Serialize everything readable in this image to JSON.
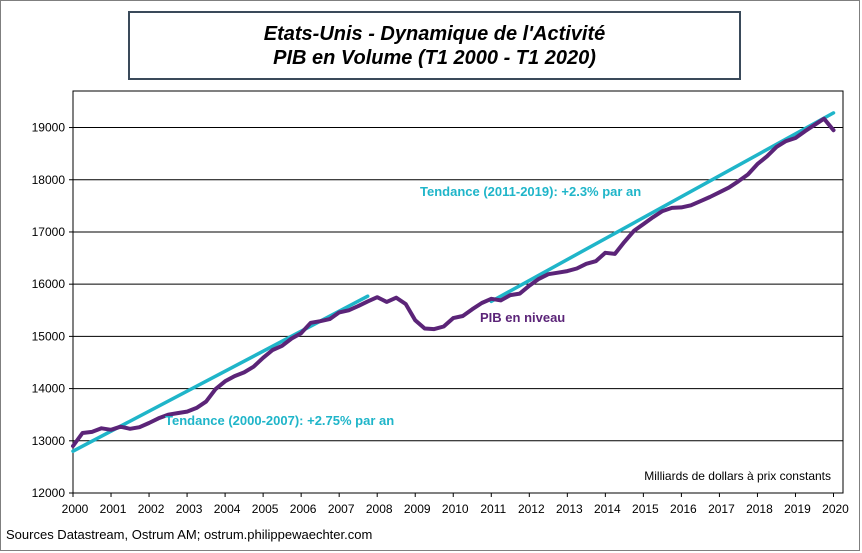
{
  "chart_data": {
    "type": "line",
    "title": "Etats-Unis - Dynamique de l'Activité",
    "subtitle": "PIB en Volume (T1 2000 - T1 2020)",
    "xlabel": "",
    "ylabel": "",
    "xlim": [
      2000,
      2020.25
    ],
    "ylim": [
      12000,
      19700
    ],
    "x_ticks": [
      "2000",
      "2001",
      "2002",
      "2003",
      "2004",
      "2005",
      "2006",
      "2007",
      "2008",
      "2009",
      "2010",
      "2011",
      "2012",
      "2013",
      "2014",
      "2015",
      "2016",
      "2017",
      "2018",
      "2019",
      "2020"
    ],
    "y_ticks": [
      "12000",
      "13000",
      "14000",
      "15000",
      "16000",
      "17000",
      "18000",
      "19000"
    ],
    "grid": "horizontal",
    "unit_note": "Milliards de dollars à prix constants",
    "series": [
      {
        "name": "PIB en niveau",
        "color": "#5b2478",
        "points": [
          [
            2000.0,
            12900
          ],
          [
            2000.25,
            13150
          ],
          [
            2000.5,
            13170
          ],
          [
            2000.75,
            13240
          ],
          [
            2001.0,
            13210
          ],
          [
            2001.25,
            13270
          ],
          [
            2001.5,
            13230
          ],
          [
            2001.75,
            13260
          ],
          [
            2002.0,
            13340
          ],
          [
            2002.25,
            13430
          ],
          [
            2002.5,
            13500
          ],
          [
            2002.75,
            13530
          ],
          [
            2003.0,
            13560
          ],
          [
            2003.25,
            13630
          ],
          [
            2003.5,
            13750
          ],
          [
            2003.75,
            13990
          ],
          [
            2004.0,
            14140
          ],
          [
            2004.25,
            14240
          ],
          [
            2004.5,
            14310
          ],
          [
            2004.75,
            14420
          ],
          [
            2005.0,
            14590
          ],
          [
            2005.25,
            14740
          ],
          [
            2005.5,
            14820
          ],
          [
            2005.75,
            14960
          ],
          [
            2006.0,
            15060
          ],
          [
            2006.25,
            15260
          ],
          [
            2006.5,
            15290
          ],
          [
            2006.75,
            15330
          ],
          [
            2007.0,
            15460
          ],
          [
            2007.25,
            15500
          ],
          [
            2007.5,
            15580
          ],
          [
            2007.75,
            15670
          ],
          [
            2008.0,
            15750
          ],
          [
            2008.25,
            15660
          ],
          [
            2008.5,
            15740
          ],
          [
            2008.75,
            15620
          ],
          [
            2009.0,
            15310
          ],
          [
            2009.25,
            15150
          ],
          [
            2009.5,
            15140
          ],
          [
            2009.75,
            15190
          ],
          [
            2010.0,
            15350
          ],
          [
            2010.25,
            15390
          ],
          [
            2010.5,
            15520
          ],
          [
            2010.75,
            15640
          ],
          [
            2011.0,
            15720
          ],
          [
            2011.25,
            15690
          ],
          [
            2011.5,
            15790
          ],
          [
            2011.75,
            15820
          ],
          [
            2012.0,
            15970
          ],
          [
            2012.25,
            16100
          ],
          [
            2012.5,
            16190
          ],
          [
            2012.75,
            16220
          ],
          [
            2013.0,
            16250
          ],
          [
            2013.25,
            16300
          ],
          [
            2013.5,
            16390
          ],
          [
            2013.75,
            16440
          ],
          [
            2014.0,
            16600
          ],
          [
            2014.25,
            16580
          ],
          [
            2014.5,
            16810
          ],
          [
            2014.75,
            17020
          ],
          [
            2015.0,
            17150
          ],
          [
            2015.25,
            17280
          ],
          [
            2015.5,
            17400
          ],
          [
            2015.75,
            17460
          ],
          [
            2016.0,
            17470
          ],
          [
            2016.25,
            17510
          ],
          [
            2016.5,
            17590
          ],
          [
            2016.75,
            17670
          ],
          [
            2017.0,
            17760
          ],
          [
            2017.25,
            17850
          ],
          [
            2017.5,
            17970
          ],
          [
            2017.75,
            18100
          ],
          [
            2018.0,
            18300
          ],
          [
            2018.25,
            18450
          ],
          [
            2018.5,
            18630
          ],
          [
            2018.75,
            18740
          ],
          [
            2019.0,
            18800
          ],
          [
            2019.25,
            18930
          ],
          [
            2019.5,
            19050
          ],
          [
            2019.75,
            19170
          ],
          [
            2020.0,
            18950
          ]
        ]
      },
      {
        "name": "Tendance (2000-2007): +2.75% par an",
        "color": "#1fb5c9",
        "points": [
          [
            2000.0,
            12800
          ],
          [
            2007.75,
            15770
          ]
        ]
      },
      {
        "name": "Tendance (2011-2019): +2.3% par an",
        "color": "#1fb5c9",
        "points": [
          [
            2011.0,
            15670
          ],
          [
            2020.0,
            19280
          ]
        ]
      }
    ],
    "annotations": {
      "trend_2000_2007": "Tendance (2000-2007): +2.75% par an",
      "trend_2011_2019": "Tendance (2011-2019): +2.3% par an",
      "gdp_level": "PIB en niveau"
    },
    "source": "Sources Datastream, Ostrum AM; ostrum.philippewaechter.com"
  }
}
